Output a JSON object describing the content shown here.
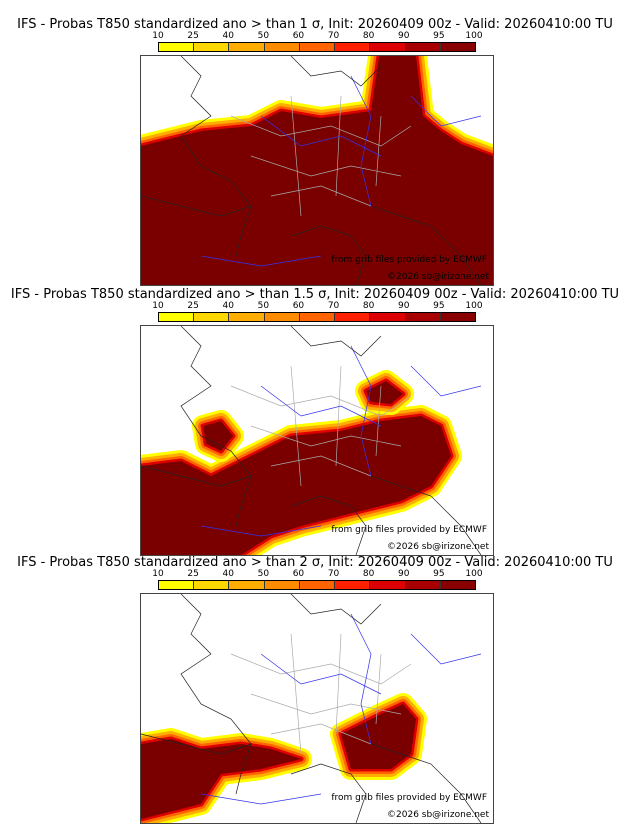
{
  "panels": [
    {
      "title": "IFS - Probas T850  standardized ano > than 1 σ, Init: 20260409 00z - Valid: 20260410:00 TU"
    },
    {
      "title": "IFS - Probas T850  standardized ano > than 1.5 σ, Init: 20260409 00z - Valid: 20260410:00 TU"
    },
    {
      "title": "IFS - Probas T850  standardized ano > than 2 σ, Init: 20260409 00z - Valid: 20260410:00 TU"
    }
  ],
  "colorbar": {
    "ticks": [
      "10",
      "25",
      "40",
      "50",
      "60",
      "70",
      "80",
      "90",
      "95",
      "100"
    ],
    "colors": [
      "#ffff00",
      "#ffd700",
      "#ffad00",
      "#ff8c00",
      "#ff6400",
      "#ff2000",
      "#dd0000",
      "#a80000",
      "#880000",
      "#5c0000"
    ]
  },
  "credits": {
    "source": "from grib files provided by ECMWF",
    "copyright": "©2026 sb@irizone.net"
  }
}
